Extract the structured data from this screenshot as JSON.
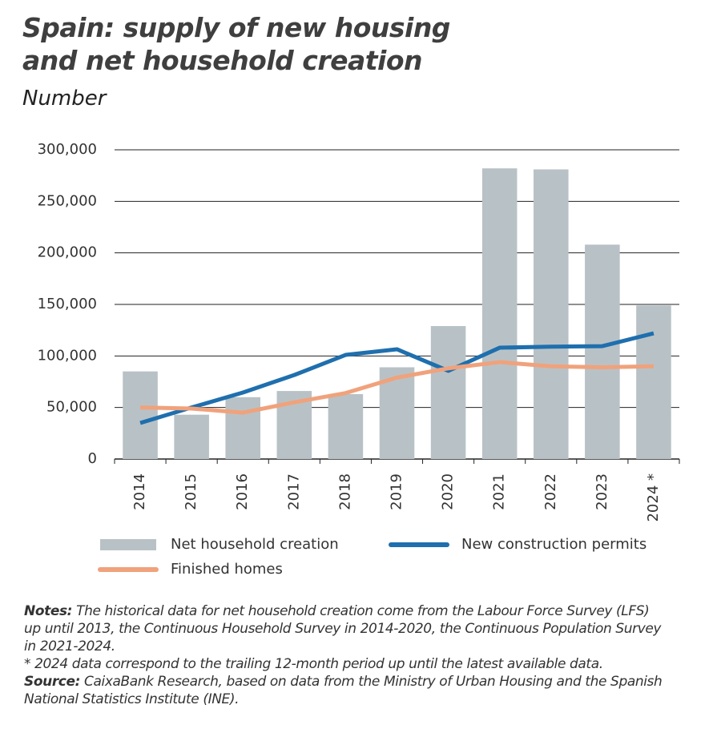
{
  "chart_data": {
    "type": "bar",
    "title": "Spain: supply of new housing and net household creation",
    "subtitle": "Number",
    "categories": [
      "2014",
      "2015",
      "2016",
      "2017",
      "2018",
      "2019",
      "2020",
      "2021",
      "2022",
      "2023",
      "2024 *"
    ],
    "series": [
      {
        "name": "Net household creation",
        "type": "bar",
        "color": "#b8c2c6",
        "values": [
          85000,
          43000,
          60000,
          66000,
          63000,
          89000,
          129000,
          282000,
          281000,
          208000,
          149000
        ]
      },
      {
        "name": "New construction permits",
        "type": "line",
        "color": "#1f6fae",
        "values": [
          35000,
          50000,
          64500,
          81500,
          101000,
          106500,
          85500,
          108000,
          109000,
          109500,
          122000
        ]
      },
      {
        "name": "Finished homes",
        "type": "line",
        "color": "#f0a27c",
        "values": [
          50000,
          49000,
          45000,
          55000,
          64000,
          79000,
          88000,
          94000,
          90000,
          89000,
          90000
        ]
      }
    ],
    "ylim": [
      0,
      300000
    ],
    "yticks": [
      0,
      {
        "value": 50000,
        "label": "50,000"
      },
      {
        "value": 100000,
        "label": "100,000"
      },
      {
        "value": 150000,
        "label": "150,000"
      },
      {
        "value": 200000,
        "label": "200,000"
      },
      {
        "value": 250000,
        "label": "250,000"
      },
      {
        "value": 300000,
        "label": "300,000"
      }
    ],
    "grid": true,
    "notes": [
      {
        "label": "Notes:",
        "text": "The historical data for net household creation come from the Labour Force Survey (LFS) up until 2013, the Continuous Household Survey in 2014-2020, the Continuous Population Survey in 2021-2024."
      },
      {
        "text": "* 2024 data correspond to the trailing 12-month period up until the latest available data."
      },
      {
        "label": "Source:",
        "text": "CaixaBank Research, based on data from the Ministry of Urban Housing and the Spanish National Statistics Institute (INE)."
      }
    ]
  }
}
